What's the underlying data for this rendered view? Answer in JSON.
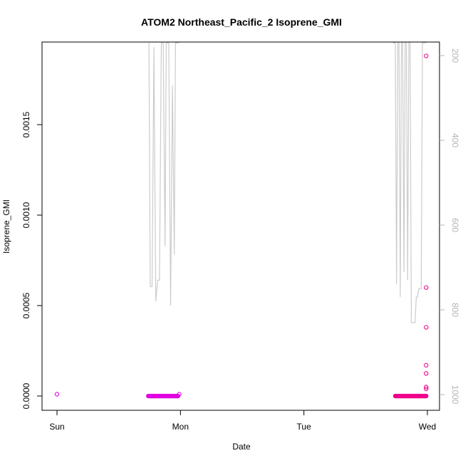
{
  "chart_data": {
    "type": "scatter",
    "title": "ATOM2 Northeast_Pacific_2 Isoprene_GMI",
    "xlabel": "Date",
    "ylabel": "Isoprene_GMI",
    "x_ticks": [
      "Sun",
      "Mon",
      "Tue",
      "Wed"
    ],
    "x_range_days": [
      0,
      3
    ],
    "ylim": [
      0,
      0.00195
    ],
    "y_ticks": [
      0.0,
      0.0005,
      0.001,
      0.0015
    ],
    "y_tick_labels": [
      "0.0000",
      "0.0005",
      "0.0010",
      "0.0015"
    ],
    "y2_ticks": [
      200,
      400,
      600,
      800,
      1000
    ],
    "y2_tick_labels": [
      "200",
      "400",
      "600",
      "800",
      "1000"
    ],
    "y2_range": [
      1030,
      170
    ],
    "y2_reversed": true,
    "grid": false,
    "colors": {
      "points_segment1": "#e000e0",
      "points_segment2": "#f0008c",
      "pressure_line": "#cccccc",
      "right_axis": "#b4b4b4"
    },
    "series": [
      {
        "type": "scatter",
        "points": [
          {
            "x": 0.0,
            "y": 1e-05
          },
          {
            "x": 0.99,
            "y": 1e-05
          }
        ],
        "dense_segments": [
          {
            "x_start": 0.74,
            "x_end": 0.98,
            "y": 0.0,
            "count": 60
          },
          {
            "x_start": 2.74,
            "x_end": 2.99,
            "y": 0.0,
            "count": 60
          }
        ],
        "points2": [
          {
            "x": 2.99,
            "y": 0.00188
          },
          {
            "x": 2.99,
            "y": 0.0006
          },
          {
            "x": 2.99,
            "y": 0.00038
          },
          {
            "x": 2.99,
            "y": 0.00017
          },
          {
            "x": 2.99,
            "y": 0.000125
          },
          {
            "x": 2.99,
            "y": 5e-05
          },
          {
            "x": 2.99,
            "y": 4e-05
          }
        ]
      },
      {
        "type": "line",
        "axis": "right",
        "segments": [
          [
            [
              0.745,
              170
            ],
            [
              0.755,
              745
            ],
            [
              0.77,
              745
            ],
            [
              0.785,
              180
            ],
            [
              0.8,
              780
            ],
            [
              0.815,
              730
            ],
            [
              0.83,
              730
            ],
            [
              0.845,
              170
            ],
            [
              0.86,
              170
            ],
            [
              0.875,
              650
            ],
            [
              0.885,
              170
            ],
            [
              0.905,
              170
            ],
            [
              0.92,
              790
            ],
            [
              0.935,
              270
            ],
            [
              0.95,
              670
            ],
            [
              0.96,
              170
            ],
            [
              0.99,
              170
            ]
          ],
          [
            [
              2.72,
              170
            ],
            [
              2.74,
              170
            ],
            [
              2.75,
              740
            ],
            [
              2.76,
              170
            ],
            [
              2.77,
              170
            ],
            [
              2.78,
              770
            ],
            [
              2.79,
              170
            ],
            [
              2.8,
              170
            ],
            [
              2.81,
              710
            ],
            [
              2.82,
              170
            ],
            [
              2.83,
              170
            ],
            [
              2.84,
              730
            ],
            [
              2.85,
              170
            ],
            [
              2.86,
              170
            ],
            [
              2.87,
              830
            ],
            [
              2.9,
              830
            ],
            [
              2.91,
              770
            ],
            [
              2.92,
              770
            ],
            [
              2.93,
              750
            ],
            [
              2.95,
              750
            ],
            [
              2.96,
              170
            ],
            [
              2.99,
              170
            ]
          ]
        ]
      }
    ]
  }
}
